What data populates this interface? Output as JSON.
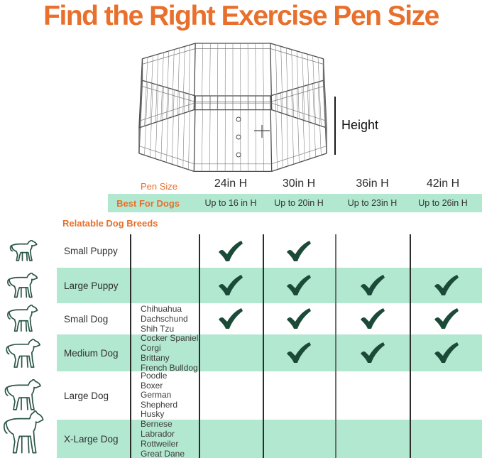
{
  "title": "Find the Right Exercise Pen Size",
  "pen_figure": {
    "height_label": "Height"
  },
  "size_table": {
    "pen_size_label": "Pen Size",
    "best_for_label": "Best For Dogs",
    "columns": [
      {
        "size": "24in H",
        "best_for": "Up to 16 in H"
      },
      {
        "size": "30in H",
        "best_for": "Up to 20in H"
      },
      {
        "size": "36in H",
        "best_for": "Up to 23in H"
      },
      {
        "size": "42in H",
        "best_for": "Up to 26in H"
      }
    ]
  },
  "breeds_section": {
    "label": "Relatable Dog Breeds",
    "rows": [
      {
        "name": "Small Puppy",
        "breeds": [],
        "checks": [
          true,
          true,
          false,
          false
        ],
        "highlighted": false
      },
      {
        "name": "Large Puppy",
        "breeds": [],
        "checks": [
          true,
          true,
          true,
          true
        ],
        "highlighted": true
      },
      {
        "name": "Small Dog",
        "breeds": [
          "Chihuahua",
          "Dachschund",
          "Shih Tzu"
        ],
        "checks": [
          true,
          true,
          true,
          true
        ],
        "highlighted": false
      },
      {
        "name": "Medium Dog",
        "breeds": [
          "Cocker Spaniel",
          "Corgi",
          "Brittany",
          "French Bulldog"
        ],
        "checks": [
          false,
          true,
          true,
          true
        ],
        "highlighted": true
      },
      {
        "name": "Large Dog",
        "breeds": [
          "Poodle",
          "Boxer",
          "German",
          "Shepherd",
          "Husky"
        ],
        "checks": [
          false,
          false,
          false,
          false
        ],
        "highlighted": false
      },
      {
        "name": "X-Large Dog",
        "breeds": [
          "Bernese",
          "Labrador",
          "Rottweiler",
          "Great Dane"
        ],
        "checks": [
          false,
          false,
          false,
          false
        ],
        "highlighted": true
      }
    ]
  },
  "colors": {
    "accent_orange": "#e8702c",
    "band_mint": "#b2e7d0",
    "check_green": "#1c4a38",
    "dog_icon_green": "#2b5547"
  }
}
